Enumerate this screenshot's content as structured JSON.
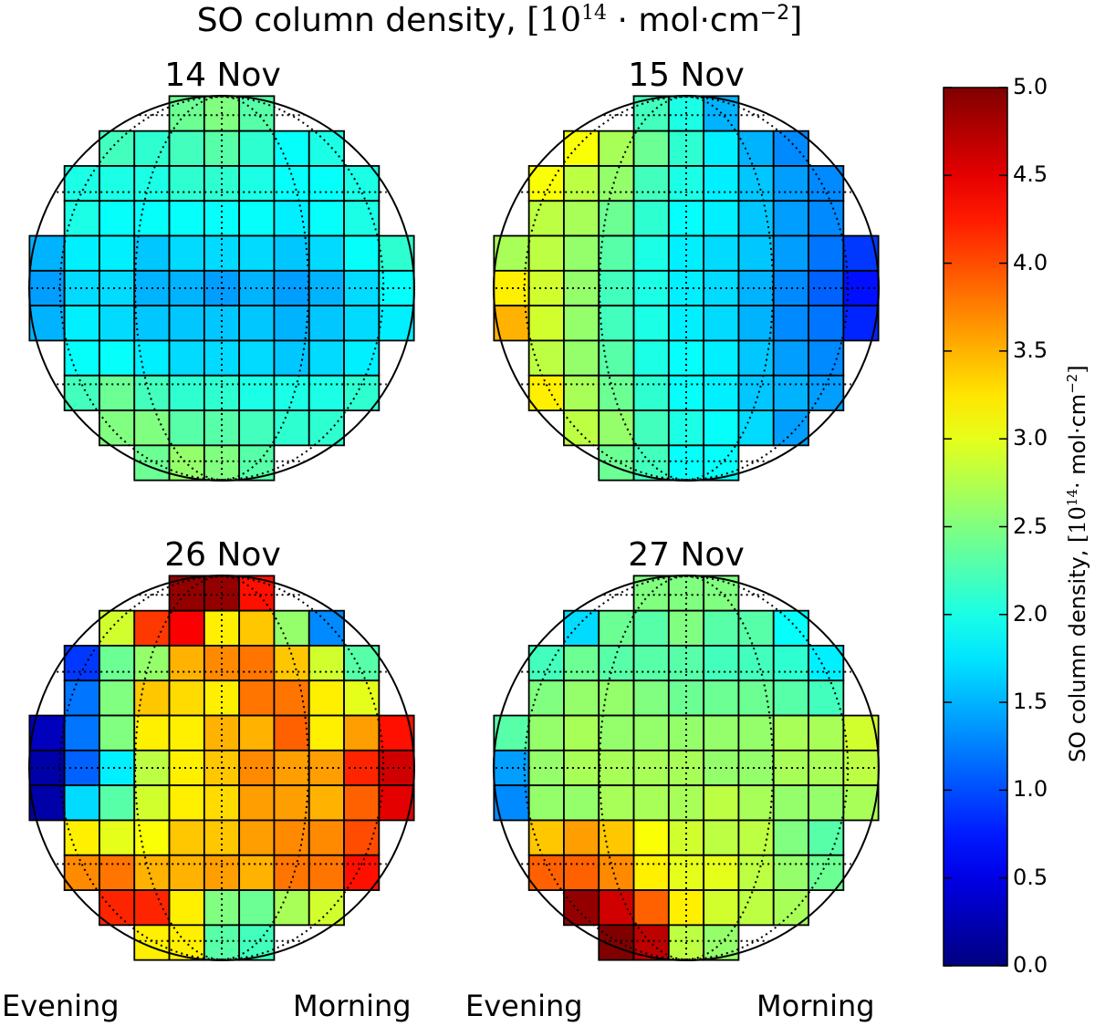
{
  "figure": {
    "title_prefix": "SO column density,",
    "title_units_open": "[10",
    "title_units_exp": "14",
    "title_units_rest": " · mol·cm",
    "title_units_exp2": "−2",
    "title_units_close": "]",
    "evening_label": "Evening",
    "morning_label": "Morning"
  },
  "colorbar": {
    "label_prefix": "SO column density,",
    "label_units_open": "[10",
    "label_units_exp": "14",
    "label_units_rest": "· mol·cm",
    "label_units_exp2": "−2",
    "label_units_close": "]",
    "ticks": [
      "0.0",
      "0.5",
      "1.0",
      "1.5",
      "2.0",
      "2.5",
      "3.0",
      "3.5",
      "4.0",
      "4.5",
      "5.0"
    ],
    "colormap": "jet"
  },
  "chart_data": {
    "type": "heatmap",
    "title": "SO column density, [10^14 · mol·cm^-2]",
    "value_range": [
      0.0,
      5.0
    ],
    "colorbar_label": "SO column density, [10^14 · mol·cm^-2]",
    "x_left_label": "Evening",
    "x_right_label": "Morning",
    "grid_rows": 11,
    "grid_cols": 11,
    "panels": [
      {
        "title": "14 Nov",
        "values": [
          [
            null,
            null,
            null,
            null,
            2.4,
            2.5,
            2.3,
            null,
            null,
            null,
            null
          ],
          [
            null,
            null,
            2.2,
            2.1,
            2.2,
            2.3,
            2.1,
            1.9,
            2.0,
            null,
            null
          ],
          [
            null,
            2.0,
            2.0,
            2.0,
            2.1,
            2.1,
            2.0,
            1.9,
            1.9,
            2.0,
            null
          ],
          [
            null,
            2.0,
            1.9,
            1.9,
            1.9,
            1.9,
            1.9,
            1.8,
            1.9,
            2.0,
            null
          ],
          [
            1.5,
            1.8,
            1.8,
            1.6,
            1.7,
            1.7,
            1.7,
            1.6,
            1.7,
            1.9,
            2.1
          ],
          [
            1.4,
            1.7,
            1.7,
            1.5,
            1.5,
            1.4,
            1.5,
            1.4,
            1.5,
            1.7,
            1.9
          ],
          [
            1.5,
            1.8,
            1.7,
            1.6,
            1.6,
            1.6,
            1.6,
            1.5,
            1.6,
            1.7,
            1.8
          ],
          [
            null,
            1.9,
            1.9,
            1.8,
            1.7,
            1.7,
            1.7,
            1.6,
            1.7,
            1.8,
            null
          ],
          [
            null,
            2.2,
            2.4,
            2.2,
            2.1,
            2.1,
            2.0,
            2.0,
            2.0,
            2.1,
            null
          ],
          [
            null,
            null,
            2.5,
            2.5,
            2.3,
            2.3,
            2.2,
            2.1,
            2.1,
            null,
            null
          ],
          [
            null,
            null,
            null,
            2.4,
            2.6,
            2.5,
            2.3,
            null,
            null,
            null,
            null
          ]
        ]
      },
      {
        "title": "15 Nov",
        "values": [
          [
            null,
            null,
            null,
            null,
            2.2,
            2.0,
            1.5,
            null,
            null,
            null,
            null
          ],
          [
            null,
            null,
            3.1,
            2.7,
            2.4,
            2.1,
            1.8,
            1.5,
            1.3,
            null,
            null
          ],
          [
            null,
            3.1,
            2.8,
            2.6,
            2.2,
            2.0,
            1.8,
            1.6,
            1.4,
            1.3,
            null
          ],
          [
            null,
            2.8,
            2.7,
            2.4,
            2.1,
            1.9,
            1.8,
            1.6,
            1.4,
            1.3,
            null
          ],
          [
            2.7,
            2.8,
            2.6,
            2.3,
            2.0,
            1.8,
            1.7,
            1.6,
            1.4,
            1.2,
            0.9
          ],
          [
            3.2,
            2.9,
            2.6,
            2.2,
            2.0,
            1.8,
            1.7,
            1.5,
            1.3,
            1.1,
            0.7
          ],
          [
            3.5,
            2.9,
            2.6,
            2.2,
            2.0,
            1.8,
            1.7,
            1.5,
            1.3,
            1.2,
            0.8
          ],
          [
            null,
            2.8,
            2.6,
            2.3,
            2.0,
            1.9,
            1.8,
            1.6,
            1.4,
            1.3,
            null
          ],
          [
            null,
            3.2,
            2.7,
            2.4,
            2.1,
            1.9,
            1.8,
            1.6,
            1.5,
            1.4,
            null
          ],
          [
            null,
            null,
            2.8,
            2.6,
            2.2,
            2.0,
            1.9,
            1.7,
            1.4,
            null,
            null
          ],
          [
            null,
            null,
            null,
            2.4,
            2.2,
            1.9,
            1.9,
            null,
            null,
            null,
            null
          ]
        ]
      },
      {
        "title": "26 Nov",
        "values": [
          [
            null,
            null,
            null,
            null,
            4.9,
            4.9,
            4.3,
            null,
            null,
            null,
            null
          ],
          [
            null,
            null,
            2.9,
            4.1,
            4.4,
            3.2,
            3.4,
            2.6,
            1.3,
            null,
            null
          ],
          [
            null,
            0.9,
            2.4,
            2.6,
            3.5,
            3.7,
            3.8,
            3.4,
            2.9,
            2.3,
            null
          ],
          [
            null,
            1.2,
            2.5,
            3.4,
            3.3,
            3.2,
            3.8,
            3.8,
            3.2,
            3.0,
            null
          ],
          [
            0.3,
            1.2,
            2.5,
            3.2,
            3.2,
            3.5,
            3.5,
            3.9,
            3.2,
            3.6,
            4.3
          ],
          [
            0.2,
            1.1,
            1.8,
            2.8,
            3.2,
            3.4,
            3.7,
            3.6,
            3.6,
            4.2,
            4.6
          ],
          [
            0.2,
            1.7,
            2.3,
            2.9,
            3.2,
            3.3,
            3.6,
            3.6,
            3.5,
            3.9,
            4.5
          ],
          [
            null,
            3.2,
            3.0,
            3.1,
            3.4,
            3.4,
            3.6,
            3.7,
            3.7,
            4.0,
            null
          ],
          [
            null,
            3.7,
            3.8,
            3.5,
            3.5,
            3.6,
            3.5,
            3.8,
            3.8,
            4.3,
            null
          ],
          [
            null,
            null,
            4.2,
            4.2,
            3.2,
            2.5,
            2.4,
            2.7,
            2.9,
            null,
            null
          ],
          [
            null,
            null,
            null,
            3.2,
            3.2,
            2.3,
            2.2,
            null,
            null,
            null,
            null
          ]
        ]
      },
      {
        "title": "27 Nov",
        "values": [
          [
            null,
            null,
            null,
            null,
            2.5,
            2.5,
            2.5,
            null,
            null,
            null,
            null
          ],
          [
            null,
            null,
            1.7,
            2.4,
            2.3,
            2.5,
            2.3,
            2.3,
            1.9,
            null,
            null
          ],
          [
            null,
            2.2,
            2.4,
            2.3,
            2.3,
            2.3,
            2.2,
            2.2,
            2.1,
            1.8,
            null
          ],
          [
            null,
            2.5,
            2.6,
            2.6,
            2.5,
            2.4,
            2.4,
            2.4,
            2.3,
            2.2,
            null
          ],
          [
            2.3,
            2.6,
            2.7,
            2.6,
            2.6,
            2.6,
            2.6,
            2.6,
            2.7,
            2.7,
            2.9
          ],
          [
            1.4,
            2.6,
            2.7,
            2.7,
            2.7,
            2.7,
            2.6,
            2.6,
            2.7,
            2.7,
            2.8
          ],
          [
            1.3,
            2.6,
            2.6,
            2.7,
            2.7,
            2.7,
            2.8,
            2.7,
            2.6,
            2.6,
            2.7
          ],
          [
            null,
            3.4,
            3.6,
            3.4,
            3.1,
            2.9,
            2.8,
            2.8,
            2.5,
            2.3,
            null
          ],
          [
            null,
            3.9,
            3.9,
            3.7,
            3.2,
            3.0,
            3.0,
            2.8,
            2.6,
            2.4,
            null
          ],
          [
            null,
            null,
            4.9,
            4.6,
            3.9,
            3.2,
            2.9,
            2.8,
            2.7,
            null,
            null
          ],
          [
            null,
            null,
            null,
            5.0,
            4.7,
            2.8,
            2.6,
            null,
            null,
            null,
            null
          ]
        ]
      }
    ]
  }
}
